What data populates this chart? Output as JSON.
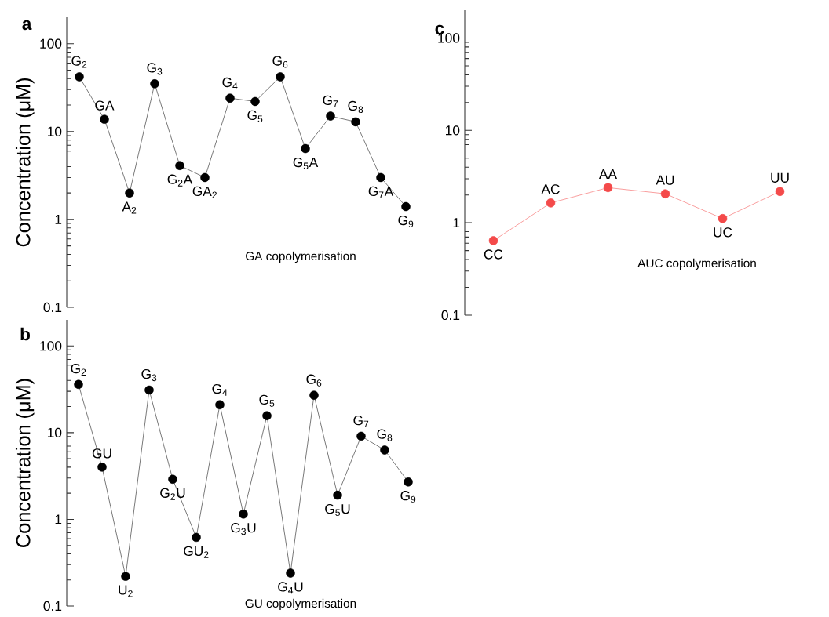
{
  "chart_data": [
    {
      "type": "line",
      "title": "a",
      "ylabel": "Concentration (μM)",
      "annotations": [
        "GA copolymerisation",
        {
          "text": "G$_{2}$",
          "y": 42
        },
        {
          "text": "GA",
          "y": 13.8
        },
        {
          "text": "A$_{2}$",
          "y": 2.0
        },
        {
          "text": "G$_{3}$",
          "y": 35
        },
        {
          "text": "G$_{2}$A",
          "y": 4.1
        },
        {
          "text": "GA$_{2}$",
          "y": 3.0
        },
        {
          "text": "G$_{4}$",
          "y": 24
        },
        {
          "text": "G$_{5}$",
          "y": 22
        },
        {
          "text": "G$_{6}$",
          "y": 42
        },
        {
          "text": "G$_{5}$A",
          "y": 6.4
        },
        {
          "text": "G$_{7}$",
          "y": 15
        },
        {
          "text": "G$_{8}$",
          "y": 12.9
        },
        {
          "text": "G$_{7}$A",
          "y": 3.0
        },
        {
          "text": "G$_{9}$",
          "y": 1.4
        }
      ],
      "categories": [
        null,
        null,
        null,
        null,
        null,
        null,
        null,
        null,
        null,
        null,
        null,
        null,
        null,
        null
      ],
      "values": [
        42,
        13.8,
        2.0,
        35,
        4.1,
        3.0,
        24,
        22,
        42,
        6.4,
        15,
        12.9,
        3.0,
        1.4
      ],
      "color": "#000000",
      "ylim": [
        0.1,
        200
      ],
      "yticks": [
        0.1,
        1,
        10,
        100
      ],
      "log": true,
      "marker": "circle",
      "line_style": "solid",
      "tick_labels": "y"
    },
    {
      "type": "line",
      "title": "b",
      "ylabel": "Concentration (μM)",
      "annotations": [
        "GU copolymerisation",
        {
          "text": "G$_{2}$",
          "y": 36
        },
        {
          "text": "GU",
          "y": 4.0
        },
        {
          "text": "U$_{2}$",
          "y": 0.22
        },
        {
          "text": "G$_{3}$",
          "y": 31
        },
        {
          "text": "G$_{2}$U",
          "y": 2.9
        },
        {
          "text": "GU$_{2}$",
          "y": 0.62
        },
        {
          "text": "G$_{4}$",
          "y": 21
        },
        {
          "text": "G$_{3}$U",
          "y": 1.15
        },
        {
          "text": "G$_{5}$",
          "y": 15.7
        },
        {
          "text": "G$_{4}$U",
          "y": 0.24
        },
        {
          "text": "G$_{6}$",
          "y": 27
        },
        {
          "text": "G$_{5}$U",
          "y": 1.9
        },
        {
          "text": "G$_{7}$",
          "y": 9.1
        },
        {
          "text": "G$_{8}$",
          "y": 6.3
        },
        {
          "text": "G$_{9}$",
          "y": 2.7
        }
      ],
      "categories": [
        null,
        null,
        null,
        null,
        null,
        null,
        null,
        null,
        null,
        null,
        null,
        null,
        null,
        null,
        null
      ],
      "values": [
        36,
        4.0,
        0.22,
        31,
        2.9,
        0.62,
        21,
        1.15,
        15.7,
        0.24,
        27,
        1.9,
        9.1,
        6.3,
        2.7
      ],
      "color": "#000000",
      "ylim": [
        0.1,
        200
      ],
      "yticks": [
        0.1,
        1,
        10,
        100
      ],
      "log": true,
      "marker": "circle",
      "line_style": "solid",
      "tick_labels": "y"
    },
    {
      "type": "line",
      "title": "c",
      "annotations": [
        "AUC copolymerisation",
        {
          "text": "CC",
          "y": 0.64
        },
        {
          "text": "AC",
          "y": 1.64
        },
        {
          "text": "AA",
          "y": 2.4
        },
        {
          "text": "AU",
          "y": 2.06
        },
        {
          "text": "UC",
          "y": 1.11
        },
        {
          "text": "UU",
          "y": 2.18
        }
      ],
      "categories": [
        null,
        null,
        null,
        null,
        null,
        null
      ],
      "values": [
        0.64,
        1.64,
        2.4,
        2.06,
        1.11,
        2.18
      ],
      "color": "#f44a4a",
      "ylim": [
        0.1,
        200
      ],
      "yticks": [
        0.1,
        1,
        10,
        100
      ],
      "log": true,
      "marker": "circle",
      "line_style": "solid",
      "tick_labels": "y"
    }
  ]
}
